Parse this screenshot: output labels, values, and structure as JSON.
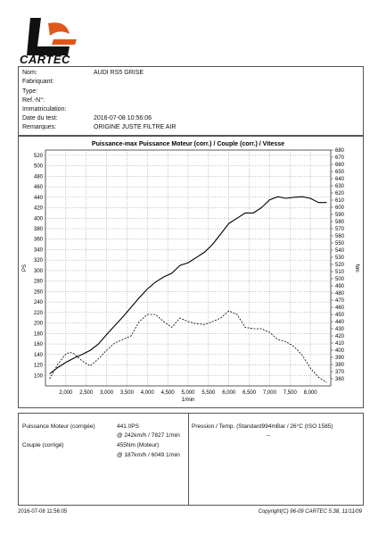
{
  "brand": {
    "logo_text": "CARTEC",
    "accent_color": "#e0561c"
  },
  "info": {
    "rows": [
      {
        "label": "Nom:",
        "value": "AUDI RS5 GRISE"
      },
      {
        "label": "Fabriquant:",
        "value": ""
      },
      {
        "label": "Type:",
        "value": ""
      },
      {
        "label": "Ref.-N°:",
        "value": ""
      },
      {
        "label": "Immatriculation:",
        "value": ""
      },
      {
        "label": "Date du test:",
        "value": "2016-07-08 10:56:06"
      },
      {
        "label": "Remarques:",
        "value": "ORIGINE JUSTE FILTRE AIR"
      }
    ]
  },
  "chart_data": {
    "type": "line",
    "title": "Puissance-max Puissance Moteur (corr.) / Couple (corr.) / Vitesse",
    "xlabel": "1/min",
    "ylabel_left": "PS",
    "ylabel_right": "Nm",
    "xlim": [
      1500,
      8500
    ],
    "ylim_left": [
      80,
      530
    ],
    "ylim_right": [
      350,
      680
    ],
    "x_ticks": [
      {
        "value": 2000,
        "label": "2,000"
      },
      {
        "value": 2500,
        "label": "2,500"
      },
      {
        "value": 3000,
        "label": "3,000"
      },
      {
        "value": 3500,
        "label": "3,500"
      },
      {
        "value": 4000,
        "label": "4,000"
      },
      {
        "value": 4500,
        "label": "4,500"
      },
      {
        "value": 5000,
        "label": "5,000"
      },
      {
        "value": 5500,
        "label": "5,500"
      },
      {
        "value": 6000,
        "label": "6,000"
      },
      {
        "value": 6500,
        "label": "6,500"
      },
      {
        "value": 7000,
        "label": "7,000"
      },
      {
        "value": 7500,
        "label": "7,500"
      },
      {
        "value": 8000,
        "label": "8,000"
      }
    ],
    "y_ticks_left": [
      100,
      120,
      140,
      160,
      180,
      200,
      220,
      240,
      260,
      280,
      300,
      320,
      340,
      360,
      380,
      400,
      420,
      440,
      460,
      480,
      500,
      520
    ],
    "y_ticks_right": [
      360,
      370,
      380,
      390,
      400,
      410,
      420,
      430,
      440,
      450,
      460,
      470,
      480,
      490,
      500,
      510,
      520,
      530,
      540,
      550,
      560,
      570,
      580,
      590,
      600,
      610,
      620,
      630,
      640,
      650,
      660,
      670,
      680
    ],
    "grid": true,
    "series": [
      {
        "name": "Puissance Moteur (corr.)",
        "axis": "left",
        "style": "solid",
        "x": [
          1600,
          1800,
          2000,
          2200,
          2400,
          2600,
          2800,
          3000,
          3200,
          3400,
          3600,
          3800,
          4000,
          4200,
          4400,
          4600,
          4800,
          5000,
          5200,
          5400,
          5600,
          5800,
          6000,
          6200,
          6400,
          6600,
          6800,
          7000,
          7200,
          7400,
          7600,
          7800,
          8000,
          8200,
          8400
        ],
        "y": [
          103,
          115,
          125,
          133,
          140,
          148,
          160,
          178,
          195,
          212,
          230,
          248,
          265,
          278,
          288,
          295,
          310,
          315,
          325,
          335,
          350,
          370,
          390,
          400,
          410,
          410,
          420,
          435,
          441,
          438,
          440,
          441,
          438,
          430,
          430
        ]
      },
      {
        "name": "Couple (corr.)",
        "axis": "right",
        "style": "dashed",
        "x": [
          1600,
          1800,
          2000,
          2100,
          2200,
          2400,
          2600,
          2800,
          3000,
          3200,
          3400,
          3600,
          3800,
          4000,
          4200,
          4400,
          4600,
          4800,
          5000,
          5200,
          5400,
          5600,
          5800,
          6000,
          6200,
          6400,
          6600,
          6800,
          7000,
          7200,
          7400,
          7600,
          7800,
          8000,
          8200,
          8400
        ],
        "y": [
          360,
          380,
          395,
          397,
          395,
          385,
          378,
          388,
          400,
          410,
          415,
          420,
          440,
          450,
          450,
          440,
          432,
          445,
          440,
          437,
          436,
          440,
          445,
          455,
          450,
          432,
          430,
          430,
          425,
          415,
          412,
          405,
          393,
          375,
          362,
          355
        ]
      }
    ]
  },
  "results": {
    "left": [
      {
        "label": "Puissance Moteur (corrigée)",
        "value": "441.0PS"
      },
      {
        "label": "",
        "value": "@ 242km/h / 7827 1/min"
      },
      {
        "label": "Couple (corrigé)",
        "value": "455Nm (Moteur)"
      },
      {
        "label": "",
        "value": "@ 187km/h / 6049 1/min"
      }
    ],
    "right_line": "Pression / Temp. (Standard994mBar / 26°C    (ISO 1585)",
    "right_sub": "--"
  },
  "footer": {
    "left": "2016-07-08 11:56:05",
    "right": "Copyright(C) 96-09 CARTEC 5.38, 11/11/09"
  }
}
